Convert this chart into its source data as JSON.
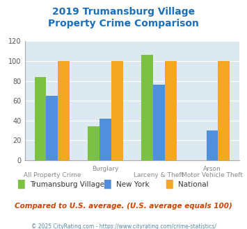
{
  "title_line1": "2019 Trumansburg Village",
  "title_line2": "Property Crime Comparison",
  "cat_top_labels": [
    "",
    "Burglary",
    "",
    "Arson"
  ],
  "cat_bottom_labels": [
    "All Property Crime",
    "",
    "Larceny & Theft",
    "Motor Vehicle Theft"
  ],
  "trumansburg": [
    84,
    34,
    106,
    0
  ],
  "new_york": [
    65,
    42,
    76,
    30
  ],
  "national": [
    100,
    100,
    100,
    100
  ],
  "bar_colors": {
    "trumansburg": "#7cc142",
    "new_york": "#4f8fdc",
    "national": "#f5a623"
  },
  "ylim": [
    0,
    120
  ],
  "yticks": [
    0,
    20,
    40,
    60,
    80,
    100,
    120
  ],
  "title_color": "#1a6fbd",
  "background_color": "#dce9f0",
  "legend_labels": [
    "Trumansburg Village",
    "New York",
    "National"
  ],
  "footnote": "Compared to U.S. average. (U.S. average equals 100)",
  "copyright": "© 2025 CityRating.com - https://www.cityrating.com/crime-statistics/",
  "footnote_color": "#cc4400",
  "copyright_color": "#5588aa"
}
